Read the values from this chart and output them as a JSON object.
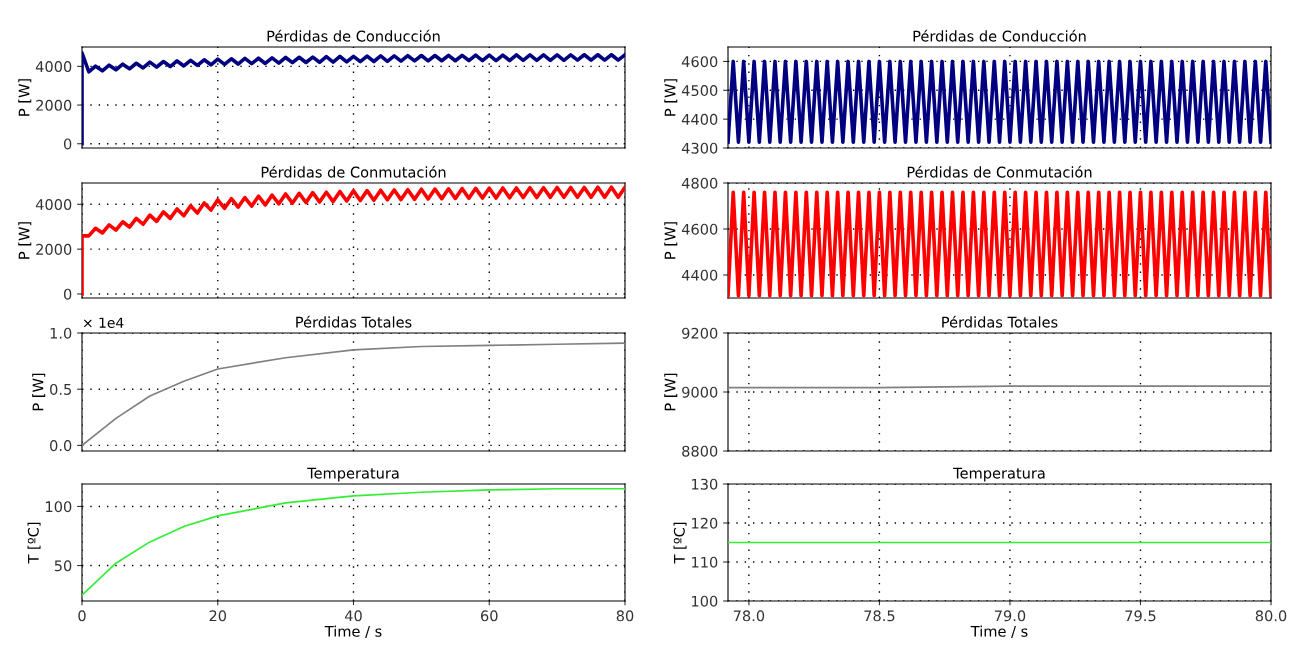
{
  "chart_data": [
    {
      "type": "line",
      "title": "Pérdidas de Conducción",
      "ylabel": "P [W]",
      "xlim": [
        0,
        80
      ],
      "xticks": [
        0,
        20,
        40,
        60,
        80
      ],
      "ylim": [
        -220,
        5000
      ],
      "yticks": [
        0,
        2000,
        4000
      ],
      "grid": true,
      "tick_labels": "y",
      "series": [
        {
          "color": "#000080",
          "x": [
            0,
            0,
            1,
            2,
            3,
            4,
            5,
            6,
            7,
            8,
            9,
            10,
            11,
            12,
            13,
            14,
            15,
            16,
            17,
            18,
            19,
            20,
            21,
            22,
            23,
            24,
            25,
            26,
            27,
            28,
            29,
            30,
            31,
            32,
            33,
            34,
            35,
            36,
            37,
            38,
            39,
            40,
            41,
            42,
            43,
            44,
            45,
            46,
            47,
            48,
            49,
            50,
            51,
            52,
            53,
            54,
            55,
            56,
            57,
            58,
            59,
            60,
            61,
            62,
            63,
            64,
            65,
            66,
            67,
            68,
            69,
            70,
            71,
            72,
            73,
            74,
            75,
            76,
            77,
            78,
            79,
            80
          ],
          "values": [
            0,
            4700,
            3720,
            4010,
            3770,
            4060,
            3820,
            4110,
            3870,
            4160,
            3920,
            4220,
            3960,
            4250,
            3990,
            4280,
            4020,
            4310,
            4050,
            4340,
            4080,
            4370,
            4100,
            4390,
            4120,
            4410,
            4140,
            4420,
            4150,
            4440,
            4170,
            4460,
            4190,
            4470,
            4200,
            4480,
            4210,
            4500,
            4220,
            4510,
            4230,
            4520,
            4240,
            4530,
            4250,
            4540,
            4260,
            4540,
            4270,
            4550,
            4280,
            4560,
            4280,
            4560,
            4290,
            4570,
            4290,
            4570,
            4300,
            4580,
            4300,
            4580,
            4300,
            4580,
            4300,
            4590,
            4310,
            4590,
            4310,
            4590,
            4310,
            4590,
            4310,
            4590,
            4320,
            4600,
            4320,
            4600,
            4320,
            4600,
            4320,
            4600
          ]
        }
      ]
    },
    {
      "type": "line",
      "title": "Pérdidas de Conducción",
      "ylabel": "P [W]",
      "xlim": [
        77.92,
        80
      ],
      "xticks": [
        78,
        78.5,
        79,
        79.5,
        80
      ],
      "ylim": [
        4300,
        4650
      ],
      "yticks": [
        4300,
        4400,
        4500,
        4600
      ],
      "grid": true,
      "tick_labels": "y",
      "x": [
        77.92,
        77.94,
        77.96,
        77.98,
        78.0,
        78.02,
        78.04,
        78.06,
        78.08,
        78.1,
        78.12,
        78.14,
        78.16,
        78.18,
        78.2,
        78.22,
        78.24,
        78.26,
        78.28,
        78.3,
        78.32,
        78.34,
        78.36,
        78.38,
        78.4,
        78.42,
        78.44,
        78.46,
        78.48,
        78.5,
        78.52,
        78.54,
        78.56,
        78.58,
        78.6,
        78.62,
        78.64,
        78.66,
        78.68,
        78.7,
        78.72,
        78.74,
        78.76,
        78.78,
        78.8,
        78.82,
        78.84,
        78.86,
        78.88,
        78.9,
        78.92,
        78.94,
        78.96,
        78.98,
        79.0,
        79.02,
        79.04,
        79.06,
        79.08,
        79.1,
        79.12,
        79.14,
        79.16,
        79.18,
        79.2,
        79.22,
        79.24,
        79.26,
        79.28,
        79.3,
        79.32,
        79.34,
        79.36,
        79.38,
        79.4,
        79.42,
        79.44,
        79.46,
        79.48,
        79.5,
        79.52,
        79.54,
        79.56,
        79.58,
        79.6,
        79.62,
        79.64,
        79.66,
        79.68,
        79.7,
        79.72,
        79.74,
        79.76,
        79.78,
        79.8,
        79.82,
        79.84,
        79.86,
        79.88,
        79.9,
        79.92,
        79.94,
        79.96,
        79.98,
        80.0
      ],
      "series": [
        {
          "color": "#000080",
          "values": [
            4320,
            4600,
            4320,
            4600,
            4320,
            4600,
            4320,
            4600,
            4320,
            4600,
            4320,
            4600,
            4320,
            4600,
            4320,
            4600,
            4320,
            4600,
            4320,
            4600,
            4320,
            4600,
            4320,
            4600,
            4320,
            4600,
            4320,
            4600,
            4320,
            4600,
            4320,
            4600,
            4320,
            4600,
            4320,
            4600,
            4320,
            4600,
            4320,
            4600,
            4320,
            4600,
            4320,
            4600,
            4320,
            4600,
            4320,
            4600,
            4320,
            4600,
            4320,
            4600,
            4320,
            4600,
            4320,
            4600,
            4320,
            4600,
            4320,
            4600,
            4320,
            4600,
            4320,
            4600,
            4320,
            4600,
            4320,
            4600,
            4320,
            4600,
            4320,
            4600,
            4320,
            4600,
            4320,
            4600,
            4320,
            4600,
            4320,
            4600,
            4320,
            4600,
            4320,
            4600,
            4320,
            4600,
            4320,
            4600,
            4320,
            4600,
            4320,
            4600,
            4320,
            4600,
            4320,
            4600,
            4320,
            4600,
            4320,
            4600,
            4320,
            4600,
            4320,
            4600,
            4320
          ]
        }
      ]
    },
    {
      "type": "line",
      "title": "Pérdidas de Conmutación",
      "ylabel": "P [W]",
      "xlim": [
        0,
        80
      ],
      "xticks": [
        0,
        20,
        40,
        60,
        80
      ],
      "ylim": [
        -180,
        4950
      ],
      "yticks": [
        0,
        2000,
        4000
      ],
      "grid": true,
      "tick_labels": "y",
      "series": [
        {
          "color": "#ff0000",
          "x": [
            0,
            0,
            1,
            2,
            3,
            4,
            5,
            6,
            7,
            8,
            9,
            10,
            11,
            12,
            13,
            14,
            15,
            16,
            17,
            18,
            19,
            20,
            21,
            22,
            23,
            24,
            25,
            26,
            27,
            28,
            29,
            30,
            31,
            32,
            33,
            34,
            35,
            36,
            37,
            38,
            39,
            40,
            41,
            42,
            43,
            44,
            45,
            46,
            47,
            48,
            49,
            50,
            51,
            52,
            53,
            54,
            55,
            56,
            57,
            58,
            59,
            60,
            61,
            62,
            63,
            64,
            65,
            66,
            67,
            68,
            69,
            70,
            71,
            72,
            73,
            74,
            75,
            76,
            77,
            78,
            79,
            80
          ],
          "values": [
            0,
            2600,
            2590,
            2930,
            2720,
            3080,
            2850,
            3220,
            2980,
            3370,
            3110,
            3520,
            3240,
            3660,
            3370,
            3790,
            3490,
            3930,
            3610,
            4060,
            3740,
            4200,
            3820,
            4250,
            3870,
            4300,
            3920,
            4360,
            3970,
            4410,
            4020,
            4460,
            4050,
            4490,
            4080,
            4520,
            4100,
            4540,
            4120,
            4570,
            4150,
            4600,
            4170,
            4610,
            4180,
            4630,
            4200,
            4640,
            4210,
            4650,
            4220,
            4670,
            4240,
            4680,
            4250,
            4690,
            4260,
            4700,
            4270,
            4710,
            4280,
            4720,
            4280,
            4730,
            4290,
            4730,
            4300,
            4740,
            4300,
            4740,
            4310,
            4750,
            4310,
            4750,
            4310,
            4750,
            4310,
            4760,
            4310,
            4760,
            4310,
            4760
          ]
        }
      ]
    },
    {
      "type": "line",
      "title": "Pérdidas de Conmutación",
      "ylabel": "P [W]",
      "xlim": [
        77.92,
        80
      ],
      "xticks": [
        78,
        78.5,
        79,
        79.5,
        80
      ],
      "ylim": [
        4300,
        4800
      ],
      "yticks": [
        4400,
        4600,
        4800
      ],
      "grid": true,
      "tick_labels": "y",
      "x": [
        77.92,
        77.94,
        77.96,
        77.98,
        78.0,
        78.02,
        78.04,
        78.06,
        78.08,
        78.1,
        78.12,
        78.14,
        78.16,
        78.18,
        78.2,
        78.22,
        78.24,
        78.26,
        78.28,
        78.3,
        78.32,
        78.34,
        78.36,
        78.38,
        78.4,
        78.42,
        78.44,
        78.46,
        78.48,
        78.5,
        78.52,
        78.54,
        78.56,
        78.58,
        78.6,
        78.62,
        78.64,
        78.66,
        78.68,
        78.7,
        78.72,
        78.74,
        78.76,
        78.78,
        78.8,
        78.82,
        78.84,
        78.86,
        78.88,
        78.9,
        78.92,
        78.94,
        78.96,
        78.98,
        79.0,
        79.02,
        79.04,
        79.06,
        79.08,
        79.1,
        79.12,
        79.14,
        79.16,
        79.18,
        79.2,
        79.22,
        79.24,
        79.26,
        79.28,
        79.3,
        79.32,
        79.34,
        79.36,
        79.38,
        79.4,
        79.42,
        79.44,
        79.46,
        79.48,
        79.5,
        79.52,
        79.54,
        79.56,
        79.58,
        79.6,
        79.62,
        79.64,
        79.66,
        79.68,
        79.7,
        79.72,
        79.74,
        79.76,
        79.78,
        79.8,
        79.82,
        79.84,
        79.86,
        79.88,
        79.9,
        79.92,
        79.94,
        79.96,
        79.98,
        80.0
      ],
      "series": [
        {
          "color": "#ff0000",
          "values": [
            4310,
            4760,
            4310,
            4760,
            4310,
            4760,
            4310,
            4760,
            4310,
            4760,
            4310,
            4760,
            4310,
            4760,
            4310,
            4760,
            4310,
            4760,
            4310,
            4760,
            4310,
            4760,
            4310,
            4760,
            4310,
            4760,
            4310,
            4760,
            4310,
            4760,
            4310,
            4760,
            4310,
            4760,
            4310,
            4760,
            4310,
            4760,
            4310,
            4760,
            4310,
            4760,
            4310,
            4760,
            4310,
            4760,
            4310,
            4760,
            4310,
            4760,
            4310,
            4760,
            4310,
            4760,
            4310,
            4760,
            4310,
            4760,
            4310,
            4760,
            4310,
            4760,
            4310,
            4760,
            4310,
            4760,
            4310,
            4760,
            4310,
            4760,
            4310,
            4760,
            4310,
            4760,
            4310,
            4760,
            4310,
            4760,
            4310,
            4760,
            4310,
            4760,
            4310,
            4760,
            4310,
            4760,
            4310,
            4760,
            4310,
            4760,
            4310,
            4760,
            4310,
            4760,
            4310,
            4760,
            4310,
            4760,
            4310,
            4760,
            4310,
            4760,
            4310,
            4760,
            4310
          ]
        }
      ]
    },
    {
      "type": "line",
      "title": "Pérdidas Totales",
      "ylabel": "P [W]",
      "annotations": [
        "× 1e4"
      ],
      "xlim": [
        0,
        80
      ],
      "xticks": [
        0,
        20,
        40,
        60,
        80
      ],
      "ylim": [
        -0.05,
        1.0
      ],
      "yticks": [
        {
          "value": 0,
          "label": "0.0"
        },
        0.5,
        {
          "value": 1,
          "label": "1.0"
        }
      ],
      "grid": true,
      "tick_labels": "y",
      "series": [
        {
          "color": "#808080",
          "x": [
            0,
            5,
            10,
            15,
            20,
            30,
            40,
            50,
            60,
            70,
            80
          ],
          "values": [
            0,
            0.24,
            0.44,
            0.57,
            0.68,
            0.78,
            0.85,
            0.88,
            0.89,
            0.9,
            0.91
          ]
        }
      ]
    },
    {
      "type": "line",
      "title": "Pérdidas Totales",
      "ylabel": "P [W]",
      "xlim": [
        77.92,
        80
      ],
      "xticks": [
        78,
        78.5,
        79,
        79.5,
        80
      ],
      "ylim": [
        8800,
        9200
      ],
      "yticks": [
        8800,
        9000,
        9200
      ],
      "grid": true,
      "tick_labels": "y",
      "series": [
        {
          "color": "#808080",
          "x": [
            77.92,
            78.5,
            79.0,
            79.5,
            80
          ],
          "values": [
            9015,
            9015,
            9020,
            9020,
            9020
          ]
        }
      ]
    },
    {
      "type": "line",
      "title": "Temperatura",
      "ylabel": "T [ºC]",
      "xlabel": "Time / s",
      "xlim": [
        0,
        80
      ],
      "xticks": [
        0,
        20,
        40,
        60,
        80
      ],
      "ylim": [
        20,
        119
      ],
      "yticks": [
        50,
        100
      ],
      "grid": true,
      "series": [
        {
          "color": "#33ee33",
          "x": [
            0,
            5,
            10,
            15,
            20,
            30,
            40,
            50,
            60,
            70,
            80
          ],
          "values": [
            25,
            52,
            70,
            83,
            92,
            103,
            109,
            112,
            114,
            115,
            115
          ]
        }
      ]
    },
    {
      "type": "line",
      "title": "Temperatura",
      "ylabel": "T [ºC]",
      "xlabel": "Time / s",
      "xlim": [
        77.92,
        80
      ],
      "xticks": [
        {
          "value": 78,
          "label": "78.0"
        },
        78.5,
        {
          "value": 79,
          "label": "79.0"
        },
        79.5,
        {
          "value": 80,
          "label": "80.0"
        }
      ],
      "ylim": [
        100,
        130
      ],
      "yticks": [
        100,
        110,
        120,
        130
      ],
      "grid": true,
      "series": [
        {
          "color": "#33ee33",
          "x": [
            77.92,
            80
          ],
          "values": [
            115,
            115
          ]
        }
      ]
    }
  ]
}
